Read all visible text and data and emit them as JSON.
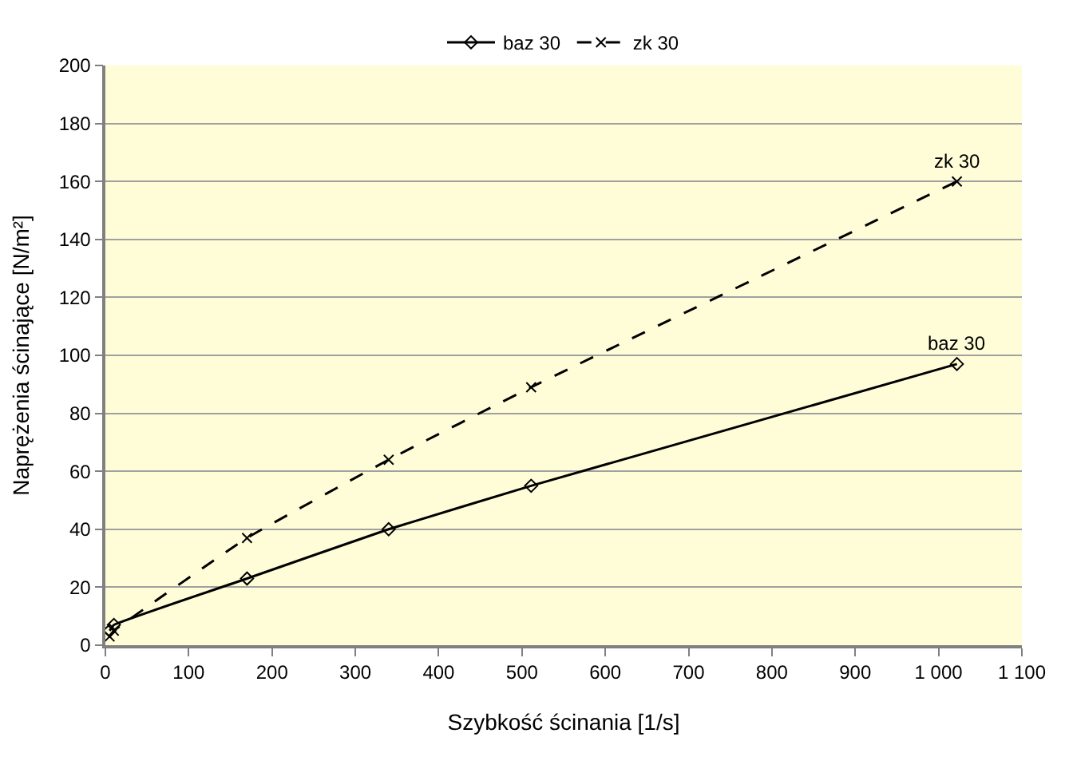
{
  "chart_data": {
    "type": "line",
    "xlabel": "Szybkość ścinania [1/s]",
    "ylabel": "Naprężenia ścinające [N/m²]",
    "x": [
      5.1,
      10.2,
      170,
      340,
      511,
      1022
    ],
    "series": [
      {
        "name": "baz 30",
        "color": "#000000",
        "values": [
          5,
          7,
          23,
          40,
          55,
          97
        ],
        "marker": "diamond",
        "line_style": "solid"
      },
      {
        "name": "zk 30",
        "color": "#000000",
        "values": [
          3,
          5,
          37,
          64,
          89,
          160
        ],
        "marker": "cross",
        "line_style": "dashed"
      }
    ],
    "xlim": [
      0,
      1100
    ],
    "xticks": [
      0,
      100,
      200,
      300,
      400,
      500,
      600,
      700,
      800,
      900,
      {
        "value": 1000,
        "label": "1 000"
      },
      {
        "value": 1100,
        "label": "1 100"
      }
    ],
    "ylim": [
      0,
      200
    ],
    "yticks": [
      0,
      20,
      40,
      60,
      80,
      100,
      120,
      140,
      160,
      180,
      200
    ],
    "grid": "y",
    "legend": "top"
  }
}
